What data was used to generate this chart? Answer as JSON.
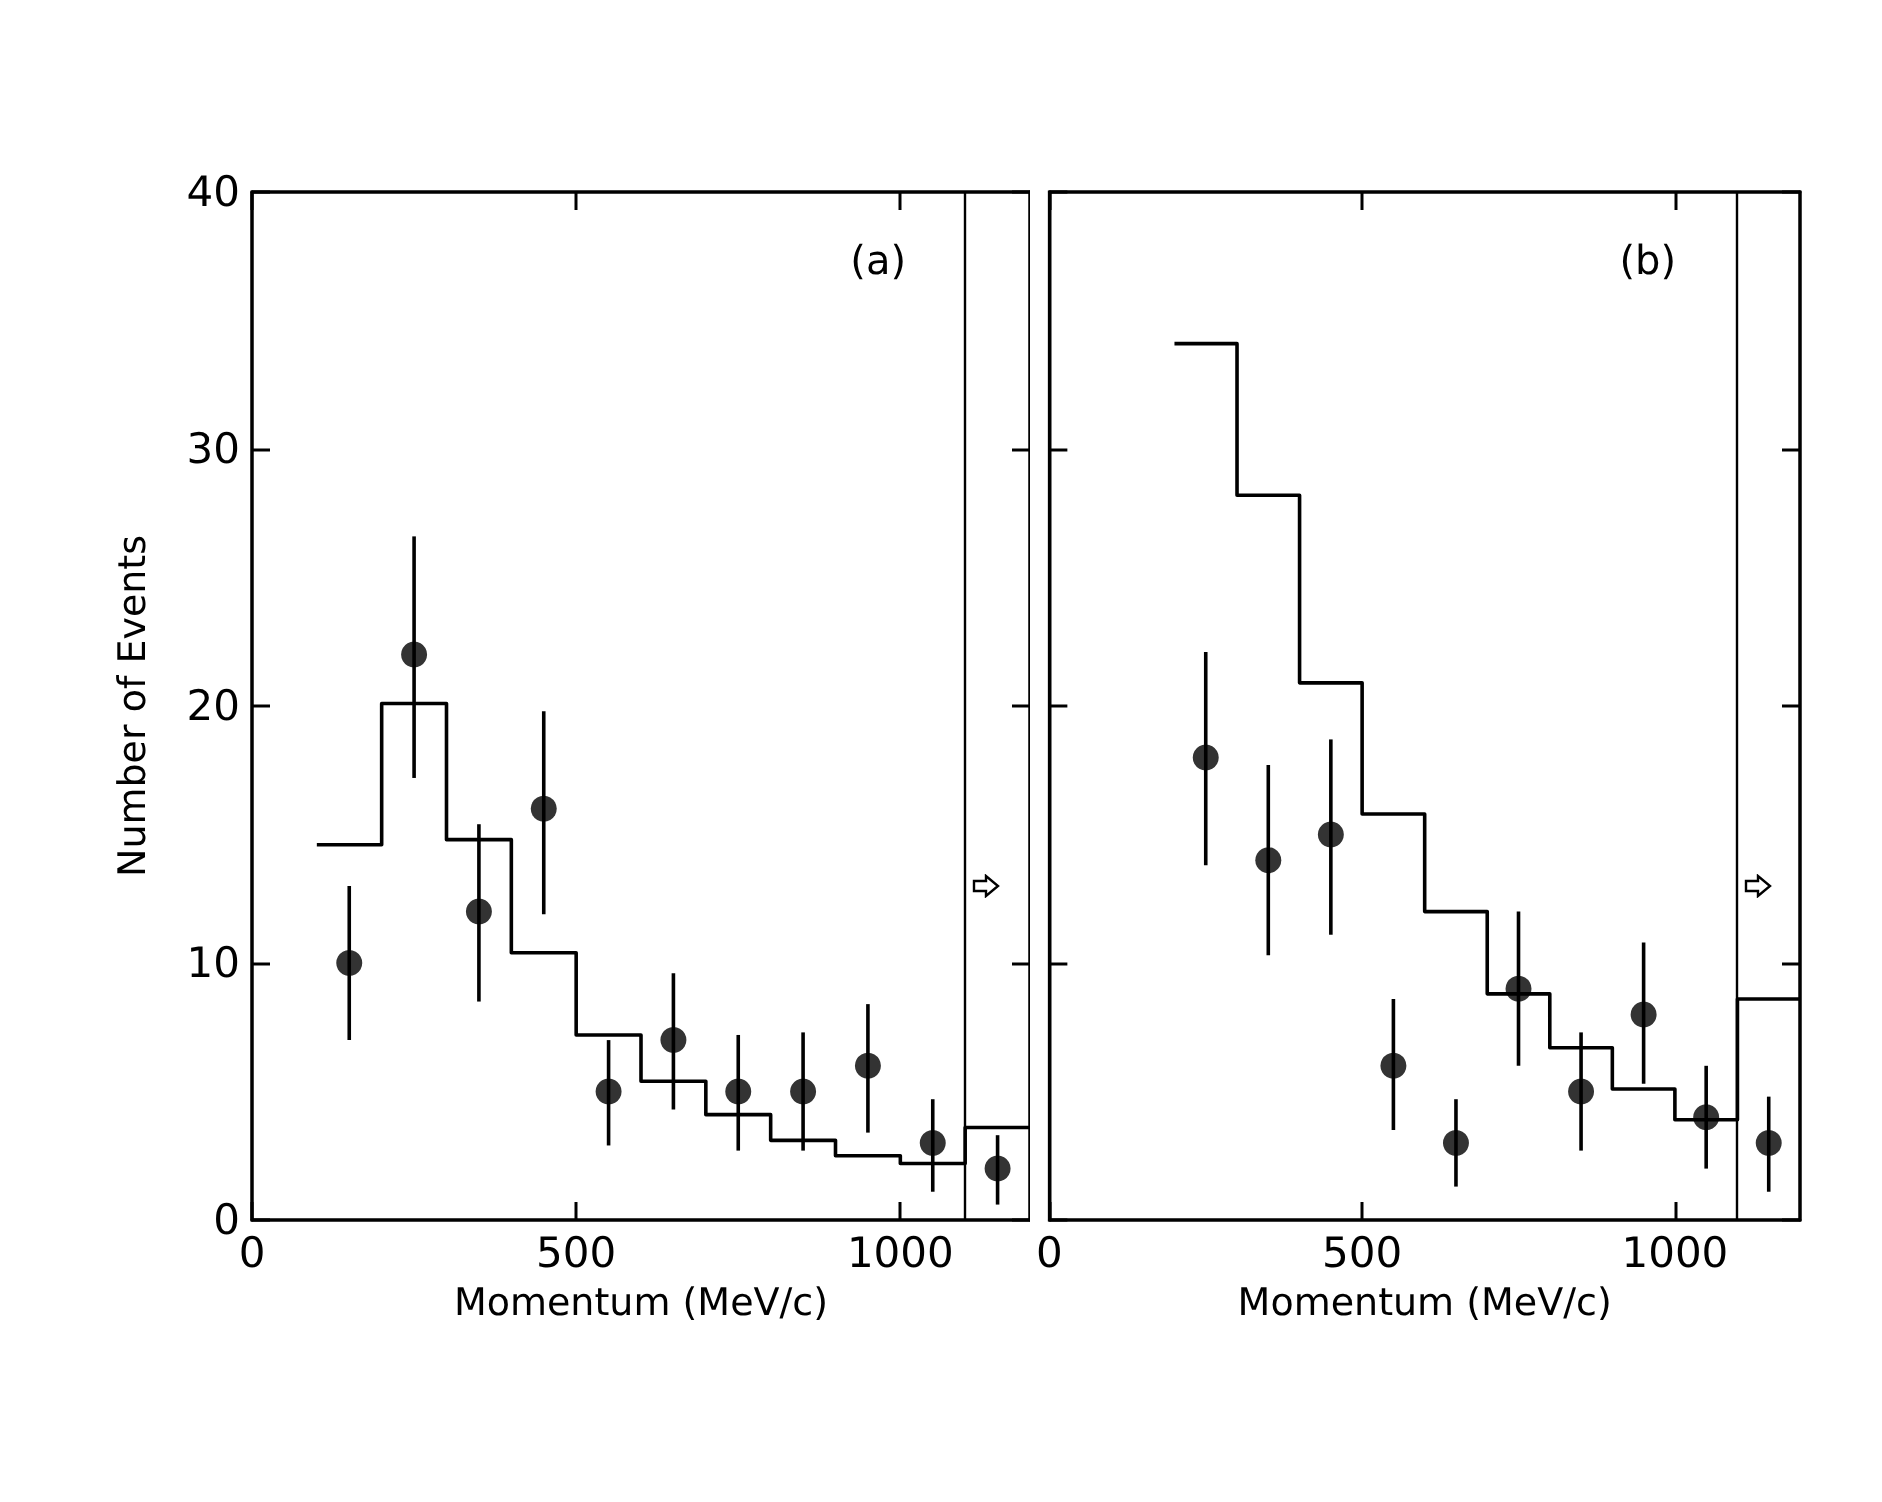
{
  "chart_data": [
    {
      "type": "scatter",
      "ylabel": "Number of Events",
      "xlabel": "Momentum (MeV/c)",
      "annotations": [
        "(a)"
      ],
      "xlim": [
        0,
        1200
      ],
      "xticks": [
        0,
        500,
        1000
      ],
      "ylim": [
        0,
        40
      ],
      "yticks": [
        0,
        10,
        20,
        30,
        40
      ],
      "grid": false,
      "marker": "circle",
      "ref_lines": [
        {
          "axis": "x",
          "value": 1100,
          "color": "#000000"
        }
      ],
      "series": [
        {
          "type": "histogram",
          "color": "#000000",
          "bins": [
            100,
            200,
            300,
            400,
            500,
            600,
            700,
            800,
            900,
            1000,
            1100,
            1200
          ],
          "values": [
            14.6,
            20.1,
            14.8,
            10.4,
            7.2,
            5.4,
            4.1,
            3.1,
            2.5,
            2.2,
            3.6
          ]
        },
        {
          "color": "#000000",
          "x": [
            150,
            250,
            350,
            450,
            550,
            650,
            750,
            850,
            950,
            1050,
            1150
          ],
          "values": [
            10,
            22,
            12,
            16,
            5,
            7,
            5,
            5,
            6,
            3,
            2
          ],
          "errors": [
            [
              7,
              13
            ],
            [
              17.2,
              26.6
            ],
            [
              8.5,
              15.4
            ],
            [
              11.9,
              19.8
            ],
            [
              2.9,
              7
            ],
            [
              4.3,
              9.6
            ],
            [
              2.7,
              7.2
            ],
            [
              2.7,
              7.3
            ],
            [
              3.4,
              8.4
            ],
            [
              1.1,
              4.7
            ],
            [
              0.6,
              3.3
            ]
          ]
        }
      ]
    },
    {
      "type": "scatter",
      "xlabel": "Momentum (MeV/c)",
      "annotations": [
        "(b)"
      ],
      "xlim": [
        0,
        1200
      ],
      "xticks": [
        0,
        500,
        1000
      ],
      "ylim": [
        0,
        40
      ],
      "yticks": [
        0,
        10,
        20,
        30,
        40
      ],
      "tick_labels": "x",
      "grid": false,
      "marker": "circle",
      "ref_lines": [
        {
          "axis": "x",
          "value": 1100,
          "color": "#000000"
        }
      ],
      "series": [
        {
          "type": "histogram",
          "color": "#000000",
          "bins": [
            200,
            300,
            400,
            500,
            600,
            700,
            800,
            900,
            1000,
            1100,
            1200
          ],
          "values": [
            34.1,
            28.2,
            20.9,
            15.8,
            12,
            8.8,
            6.7,
            5.1,
            3.9,
            8.6
          ]
        },
        {
          "color": "#000000",
          "x": [
            250,
            350,
            450,
            550,
            650,
            750,
            850,
            950,
            1050,
            1150
          ],
          "values": [
            18,
            14,
            15,
            6,
            3,
            9,
            5,
            8,
            4,
            3
          ],
          "errors": [
            [
              13.8,
              22.1
            ],
            [
              10.3,
              17.7
            ],
            [
              11.1,
              18.7
            ],
            [
              3.5,
              8.6
            ],
            [
              1.3,
              4.7
            ],
            [
              6,
              12
            ],
            [
              2.7,
              7.3
            ],
            [
              5.3,
              10.8
            ],
            [
              2,
              6
            ],
            [
              1.1,
              4.8
            ]
          ]
        }
      ]
    }
  ]
}
